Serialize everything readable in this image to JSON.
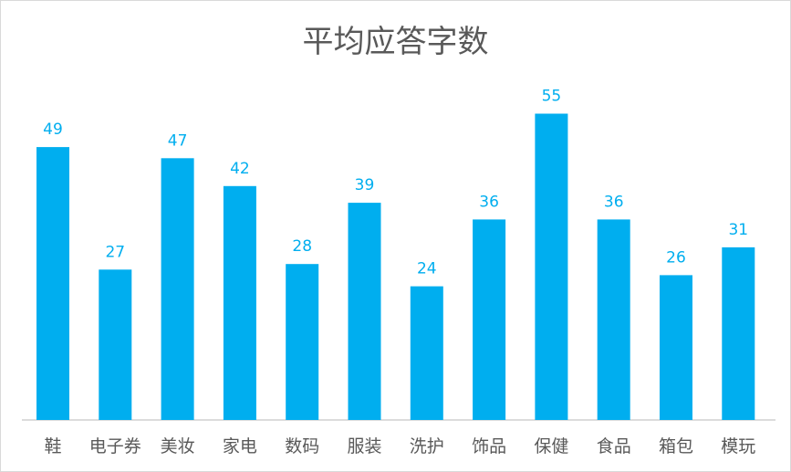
{
  "chart_data": {
    "type": "bar",
    "title": "平均应答字数",
    "categories": [
      "鞋",
      "电子券",
      "美妆",
      "家电",
      "数码",
      "服装",
      "洗护",
      "饰品",
      "保健",
      "食品",
      "箱包",
      "模玩"
    ],
    "values": [
      49,
      27,
      47,
      42,
      28,
      39,
      24,
      36,
      55,
      36,
      26,
      31
    ],
    "xlabel": "",
    "ylabel": "",
    "ylim": [
      0,
      60
    ],
    "grid": false,
    "legend": "none",
    "bar_color": "#00aeef"
  }
}
